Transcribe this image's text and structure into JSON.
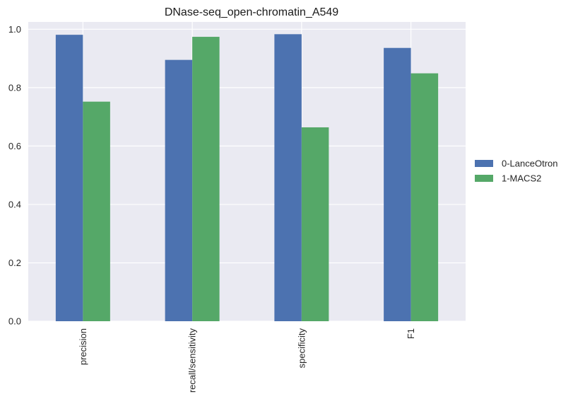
{
  "chart_data": {
    "type": "bar",
    "title": "DNase-seq_open-chromatin_A549",
    "xlabel": "",
    "ylabel": "",
    "categories": [
      "precision",
      "recall/sensitivity",
      "specificity",
      "F1"
    ],
    "series": [
      {
        "name": "0-LanceOtron",
        "color": "#4c72b0",
        "values": [
          0.981,
          0.895,
          0.983,
          0.936
        ]
      },
      {
        "name": "1-MACS2",
        "color": "#55a868",
        "values": [
          0.752,
          0.974,
          0.664,
          0.849
        ]
      }
    ],
    "ylim": [
      0,
      1.025
    ],
    "yticks": [
      0.0,
      0.2,
      0.4,
      0.6,
      0.8,
      1.0
    ],
    "ytick_labels": [
      "0.0",
      "0.2",
      "0.4",
      "0.6",
      "0.8",
      "1.0"
    ],
    "grid": true,
    "background": "#eaeaf2",
    "legend_position": "center-right"
  }
}
